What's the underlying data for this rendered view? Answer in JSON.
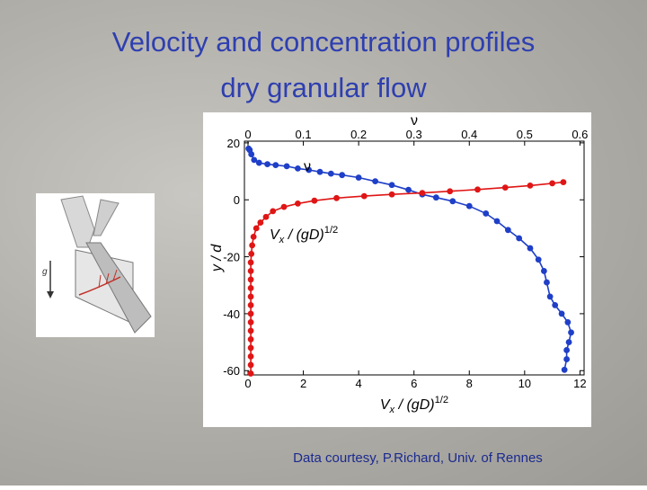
{
  "slide": {
    "title": [
      "Velocity and concentration profiles",
      "dry granular flow"
    ],
    "credit": "Data courtesy, P.Richard, Univ. of Rennes",
    "inset_label": "g"
  },
  "chart_data": {
    "type": "scatter",
    "xlabel": {
      "main": "V",
      "sub": "x",
      "mid": " / (gD)",
      "sup": "1/2"
    },
    "x2label": "ν",
    "ylabel": "y / d",
    "xlim": [
      -0.13,
      12.15
    ],
    "xticks": [
      0,
      2,
      4,
      6,
      8,
      10,
      12
    ],
    "x2lim": [
      -0.0065,
      0.6075
    ],
    "x2ticks": [
      0,
      0.1,
      0.2,
      0.3,
      0.4,
      0.5,
      0.6
    ],
    "ylim": [
      -61.5,
      20.6
    ],
    "yticks": [
      20,
      0,
      -20,
      -40,
      -60
    ],
    "series": [
      {
        "name": "ν",
        "color": "#1f3fc8",
        "axis": "x2",
        "x": [
          0.001,
          0.003,
          0.006,
          0.011,
          0.02,
          0.035,
          0.05,
          0.07,
          0.09,
          0.11,
          0.13,
          0.15,
          0.17,
          0.2,
          0.23,
          0.26,
          0.29,
          0.315,
          0.34,
          0.37,
          0.4,
          0.43,
          0.45,
          0.47,
          0.49,
          0.51,
          0.525,
          0.535,
          0.54,
          0.546,
          0.555,
          0.567,
          0.578,
          0.584,
          0.58,
          0.576,
          0.576,
          0.572
        ],
        "values": [
          18,
          17.5,
          16,
          14,
          13,
          12.5,
          12.2,
          11.8,
          11,
          10.5,
          9.8,
          9.2,
          8.7,
          7.8,
          6.5,
          5.2,
          3.5,
          1.9,
          0.8,
          -0.5,
          -2.2,
          -4.8,
          -7.5,
          -10.6,
          -13.5,
          -17,
          -21,
          -25,
          -29,
          -34,
          -37,
          -40,
          -43,
          -46.6,
          -50,
          -52.8,
          -56,
          -59.7
        ]
      },
      {
        "name": {
          "main": "V",
          "sub": "x",
          "mid": " / (gD)",
          "sup": "1/2"
        },
        "color": "#e01515",
        "x": [
          0.1,
          0.1,
          0.1,
          0.1,
          0.1,
          0.1,
          0.1,
          0.1,
          0.1,
          0.1,
          0.1,
          0.1,
          0.1,
          0.1,
          0.12,
          0.15,
          0.2,
          0.3,
          0.45,
          0.65,
          0.9,
          1.3,
          1.8,
          2.4,
          3.2,
          4.2,
          5.2,
          6.3,
          7.3,
          8.3,
          9.3,
          10.2,
          11,
          11.4
        ],
        "values": [
          -61,
          -58,
          -55,
          -52,
          -49,
          -46,
          -43,
          -40,
          -37,
          -34,
          -31,
          -28,
          -25,
          -22,
          -19,
          -16,
          -13,
          -10,
          -8,
          -6,
          -4,
          -2.5,
          -1.3,
          -0.3,
          0.6,
          1.3,
          1.9,
          2.4,
          3,
          3.6,
          4.3,
          5,
          5.8,
          6.2
        ]
      }
    ]
  }
}
